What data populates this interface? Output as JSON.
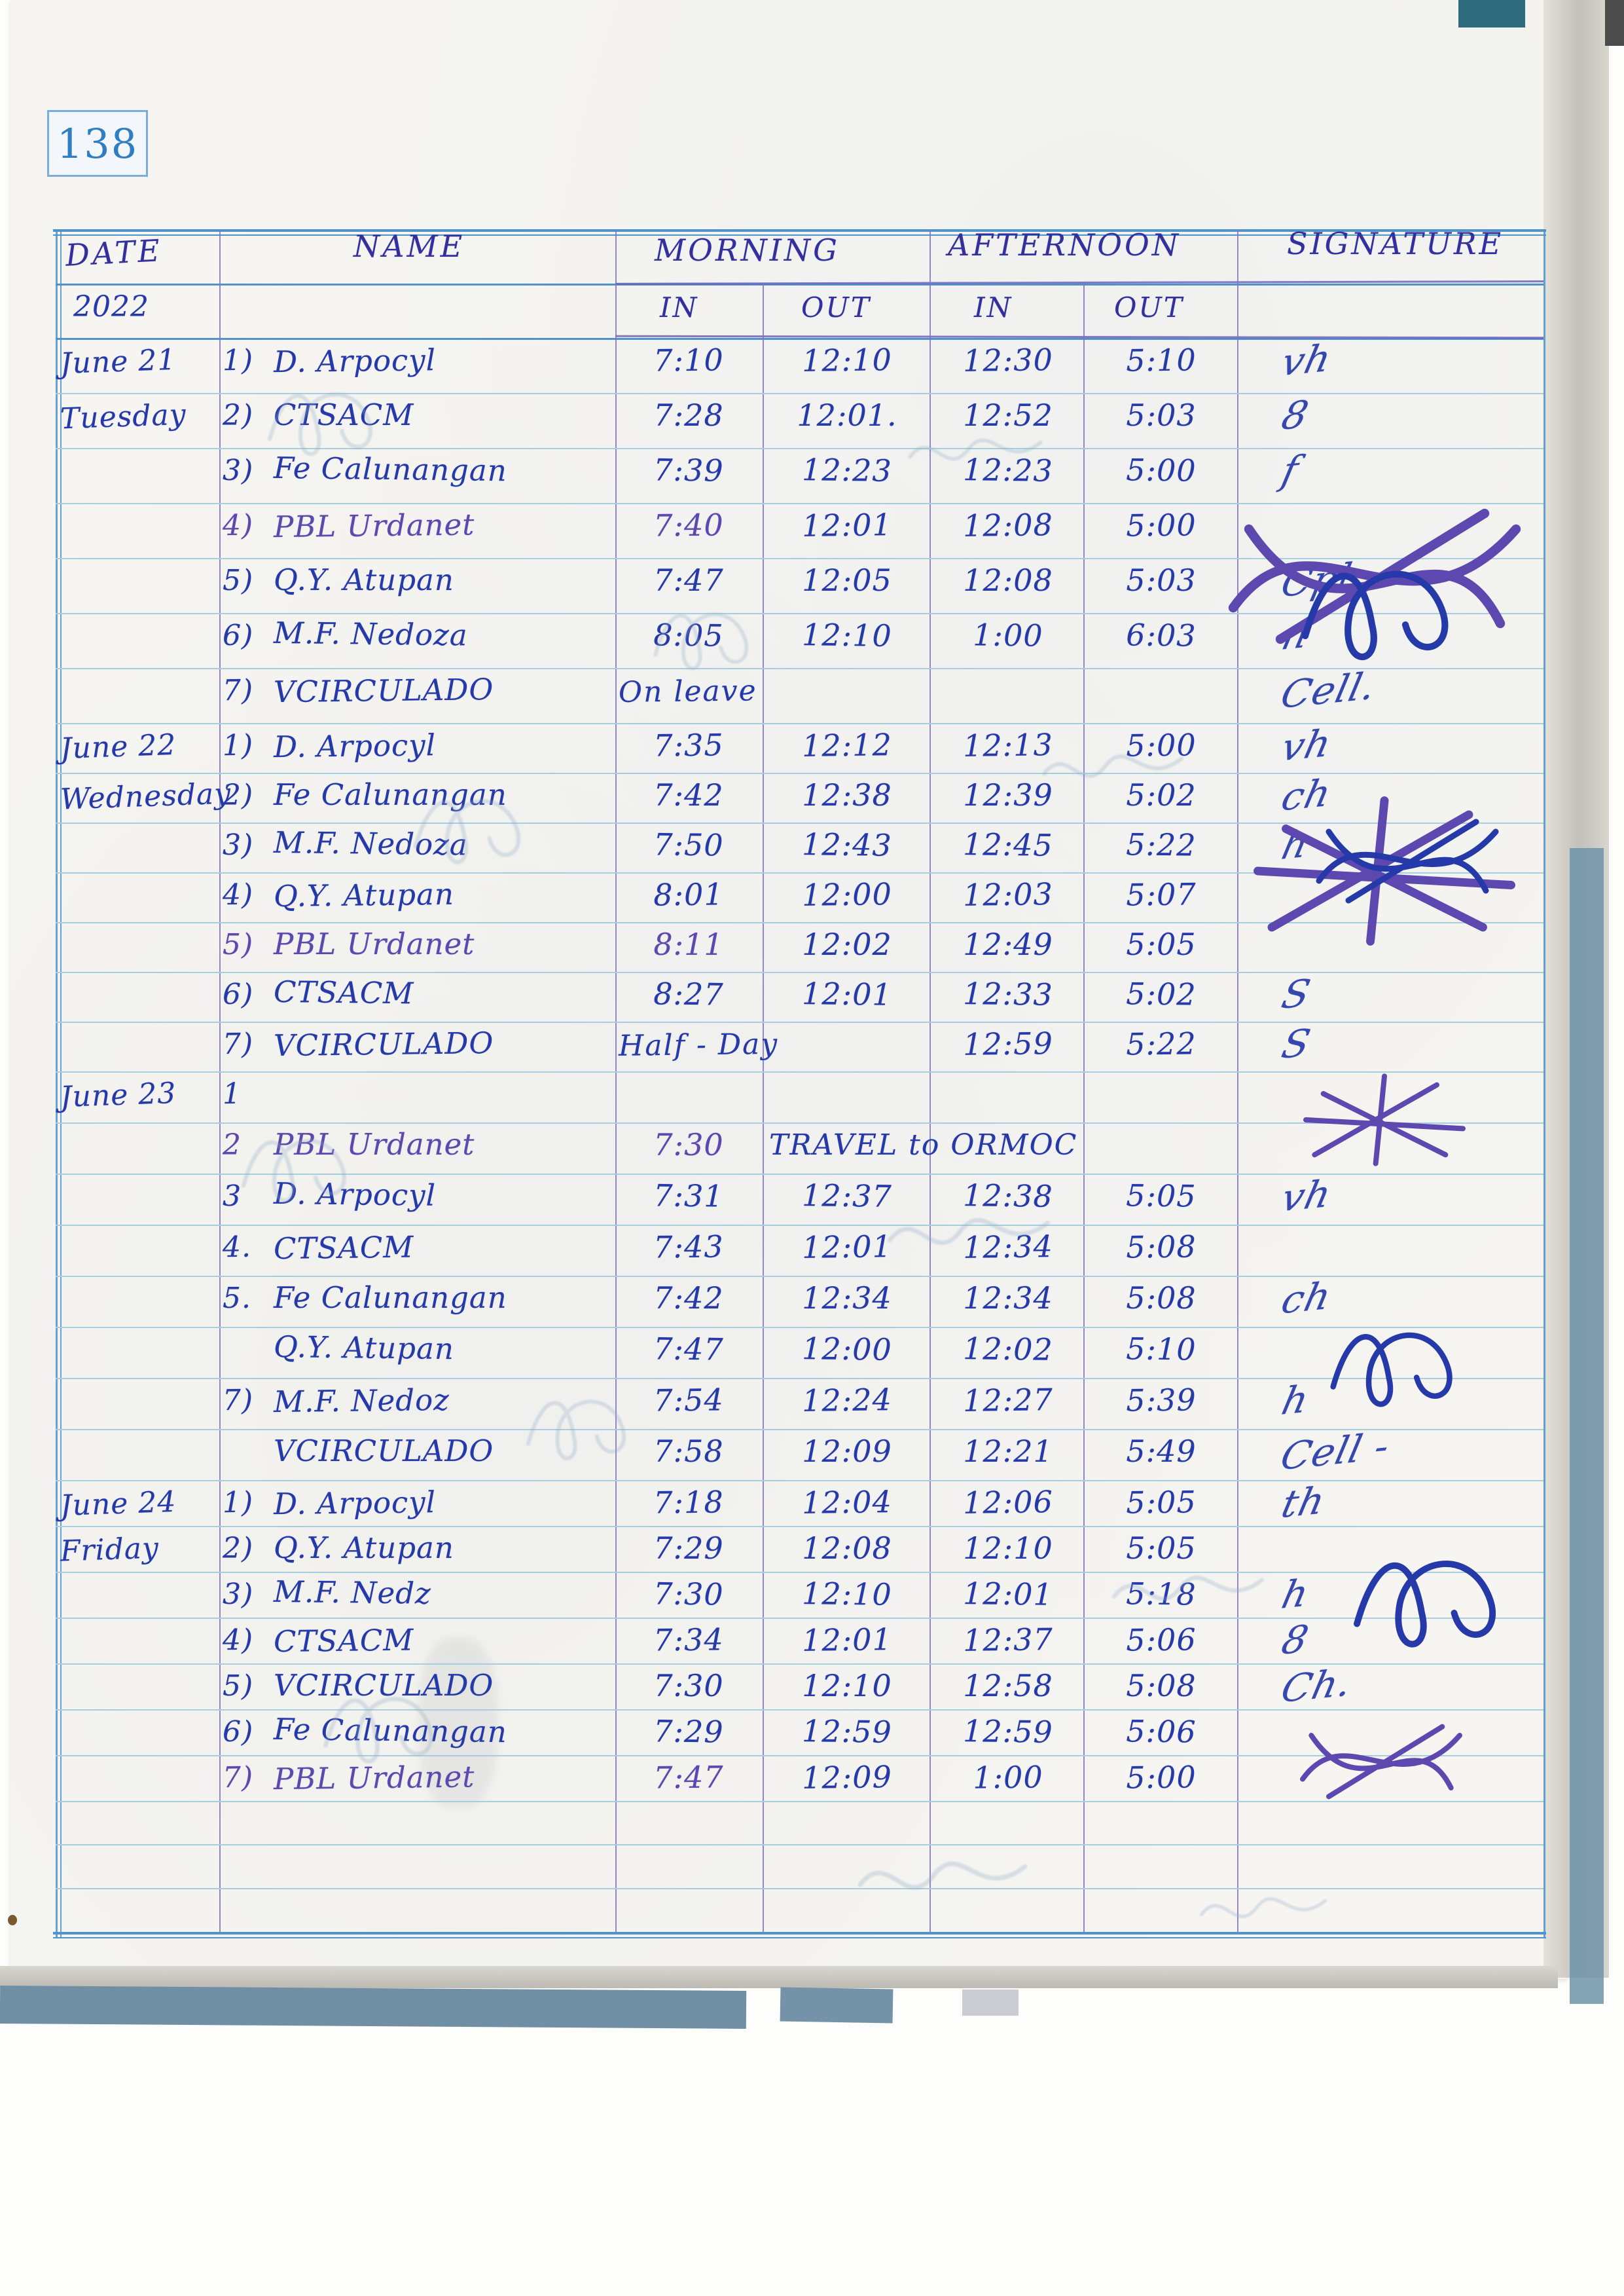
{
  "page_number": "138",
  "colors": {
    "ink_blue": "#2639a8",
    "ink_purple": "#5c48ae",
    "header_ink": "#33309e",
    "rule_cyan": "#a6cede",
    "border_blue": "#4e93cc",
    "page_bg": "#f6f5f1"
  },
  "header": {
    "date": "DATE",
    "year": "2022",
    "name": "NAME",
    "morning": "MORNING",
    "afternoon": "AFTERNOON",
    "signature": "SIGNATURE",
    "in1": "IN",
    "out1": "OUT",
    "in2": "IN",
    "out2": "OUT"
  },
  "days": [
    {
      "date_lines": [
        "June 21",
        "Tuesday"
      ],
      "rows": [
        {
          "num": "1)",
          "name": "D. Arpocyl",
          "m_in": "7:10",
          "m_out": "12:10",
          "a_in": "12:30",
          "a_out": "5:10",
          "sig": "vh"
        },
        {
          "num": "2)",
          "name": "CTSACM",
          "m_in": "7:28",
          "m_out": "12:01.",
          "a_in": "12:52",
          "a_out": "5:03",
          "sig": "8"
        },
        {
          "num": "3)",
          "name": "Fe Calunangan",
          "m_in": "7:39",
          "m_out": "12:23",
          "a_in": "12:23",
          "a_out": "5:00",
          "sig": "f"
        },
        {
          "num": "4)",
          "name": "PBL Urdanet",
          "ink": "purple",
          "m_in": "7:40",
          "m_out": "12:01",
          "a_in": "12:08",
          "a_out": "5:00",
          "sig": ""
        },
        {
          "num": "5)",
          "name": "Q.Y. Atupan",
          "m_in": "7:47",
          "m_out": "12:05",
          "a_in": "12:08",
          "a_out": "5:03",
          "sig": "Cpl"
        },
        {
          "num": "6)",
          "name": "M.F. Nedoza",
          "m_in": "8:05",
          "m_out": "12:10",
          "a_in": "1:00",
          "a_out": "6:03",
          "sig": "n"
        },
        {
          "num": "7)",
          "name": "VCIRCULADO",
          "note": "On leave",
          "note_span": "m",
          "m_in": "",
          "m_out": "",
          "a_in": "",
          "a_out": "",
          "sig": "Cell."
        }
      ]
    },
    {
      "date_lines": [
        "June 22",
        "Wednesday"
      ],
      "rows": [
        {
          "num": "1)",
          "name": "D. Arpocyl",
          "m_in": "7:35",
          "m_out": "12:12",
          "a_in": "12:13",
          "a_out": "5:00",
          "sig": "vh"
        },
        {
          "num": "2)",
          "name": "Fe Calunangan",
          "m_in": "7:42",
          "m_out": "12:38",
          "a_in": "12:39",
          "a_out": "5:02",
          "sig": "ch"
        },
        {
          "num": "3)",
          "name": "M.F. Nedoza",
          "m_in": "7:50",
          "m_out": "12:43",
          "a_in": "12:45",
          "a_out": "5:22",
          "sig": "h"
        },
        {
          "num": "4)",
          "name": "Q.Y. Atupan",
          "m_in": "8:01",
          "m_out": "12:00",
          "a_in": "12:03",
          "a_out": "5:07",
          "sig": ""
        },
        {
          "num": "5)",
          "name": "PBL Urdanet",
          "ink": "purple",
          "m_in": "8:11",
          "m_out": "12:02",
          "a_in": "12:49",
          "a_out": "5:05",
          "sig": ""
        },
        {
          "num": "6)",
          "name": "CTSACM",
          "m_in": "8:27",
          "m_out": "12:01",
          "a_in": "12:33",
          "a_out": "5:02",
          "sig": "S"
        },
        {
          "num": "7)",
          "name": "VCIRCULADO",
          "note": "Half - Day",
          "note_span": "m",
          "m_in": "",
          "m_out": "",
          "a_in": "12:59",
          "a_out": "5:22",
          "sig": "S"
        }
      ]
    },
    {
      "date_lines": [
        "June 23"
      ],
      "rows": [
        {
          "num": "1",
          "name": "",
          "m_in": "",
          "m_out": "",
          "a_in": "",
          "a_out": "",
          "sig": ""
        },
        {
          "num": "2",
          "name": "PBL Urdanet",
          "ink": "purple",
          "m_in": "7:30",
          "note": "TRAVEL to ORMOC",
          "note_span": "wide",
          "m_out": "",
          "a_in": "",
          "a_out": "",
          "sig": ""
        },
        {
          "num": "3",
          "name": "D. Arpocyl",
          "m_in": "7:31",
          "m_out": "12:37",
          "a_in": "12:38",
          "a_out": "5:05",
          "sig": "vh"
        },
        {
          "num": "4.",
          "name": "CTSACM",
          "m_in": "7:43",
          "m_out": "12:01",
          "a_in": "12:34",
          "a_out": "5:08",
          "sig": ""
        },
        {
          "num": "5.",
          "name": "Fe Calunangan",
          "m_in": "7:42",
          "m_out": "12:34",
          "a_in": "12:34",
          "a_out": "5:08",
          "sig": "ch"
        },
        {
          "num": "",
          "name": "Q.Y. Atupan",
          "m_in": "7:47",
          "m_out": "12:00",
          "a_in": "12:02",
          "a_out": "5:10",
          "sig": ""
        },
        {
          "num": "7)",
          "name": "M.F. Nedoz",
          "m_in": "7:54",
          "m_out": "12:24",
          "a_in": "12:27",
          "a_out": "5:39",
          "sig": "h"
        },
        {
          "num": "",
          "name": "VCIRCULADO",
          "m_in": "7:58",
          "m_out": "12:09",
          "a_in": "12:21",
          "a_out": "5:49",
          "sig": "Cell -"
        }
      ]
    },
    {
      "date_lines": [
        "June 24",
        "Friday"
      ],
      "rows": [
        {
          "num": "1)",
          "name": "D. Arpocyl",
          "m_in": "7:18",
          "m_out": "12:04",
          "a_in": "12:06",
          "a_out": "5:05",
          "sig": "th"
        },
        {
          "num": "2)",
          "name": "Q.Y. Atupan",
          "m_in": "7:29",
          "m_out": "12:08",
          "a_in": "12:10",
          "a_out": "5:05",
          "sig": ""
        },
        {
          "num": "3)",
          "name": "M.F. Nedz",
          "m_in": "7:30",
          "m_out": "12:10",
          "a_in": "12:01",
          "a_out": "5:18",
          "sig": "h"
        },
        {
          "num": "4)",
          "name": "CTSACM",
          "m_in": "7:34",
          "m_out": "12:01",
          "a_in": "12:37",
          "a_out": "5:06",
          "sig": "8"
        },
        {
          "num": "5)",
          "name": "VCIRCULADO",
          "m_in": "7:30",
          "m_out": "12:10",
          "a_in": "12:58",
          "a_out": "5:08",
          "sig": "Ch."
        },
        {
          "num": "6)",
          "name": "Fe Calunangan",
          "m_in": "7:29",
          "m_out": "12:59",
          "a_in": "12:59",
          "a_out": "5:06",
          "sig": ""
        },
        {
          "num": "7)",
          "name": "PBL Urdanet",
          "ink": "purple",
          "m_in": "7:47",
          "m_out": "12:09",
          "a_in": "1:00",
          "a_out": "5:00",
          "sig": ""
        }
      ]
    }
  ]
}
